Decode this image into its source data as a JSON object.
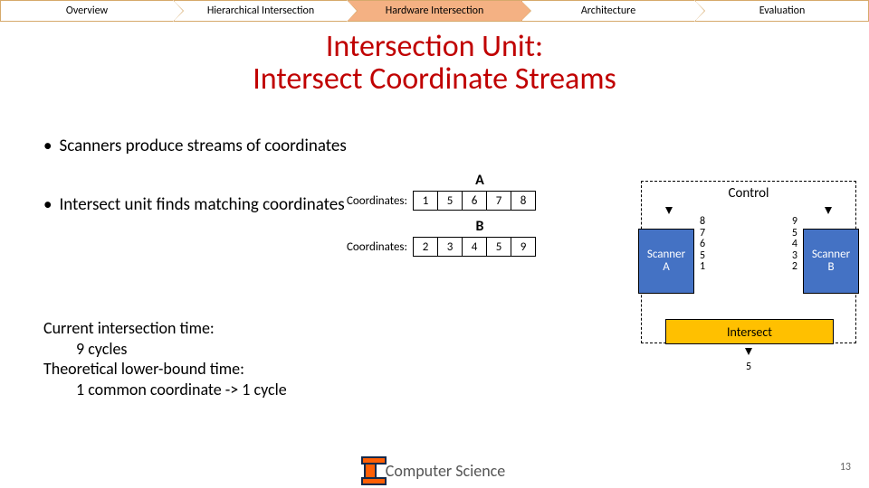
{
  "nav": {
    "items": [
      "Overview",
      "Hierarchical Intersection",
      "Hardware Intersection",
      "Architecture",
      "Evaluation"
    ],
    "active_index": 2,
    "active_bg": "#f4b183",
    "border_color": "#d6a96b"
  },
  "title": {
    "line1": "Intersection Unit:",
    "line2": "Intersect Coordinate Streams",
    "color": "#c00000",
    "fontsize": 34
  },
  "bullets": [
    "Scanners produce streams of coordinates",
    "Intersect unit finds matching coordinates"
  ],
  "streams": {
    "label_text": "Coordinates:",
    "A": {
      "name": "A",
      "cells": [
        "1",
        "5",
        "6",
        "7",
        "8"
      ]
    },
    "B": {
      "name": "B",
      "cells": [
        "2",
        "3",
        "4",
        "5",
        "9"
      ]
    }
  },
  "summary": {
    "l1": "Current intersection time:",
    "l2": "9 cycles",
    "l3": "Theoretical lower-bound time:",
    "l4": "1 common coordinate -> 1 cycle"
  },
  "control": {
    "title": "Control",
    "scannerA": {
      "l1": "Scanner",
      "l2": "A",
      "bg": "#4472c4"
    },
    "scannerB": {
      "l1": "Scanner",
      "l2": "B",
      "bg": "#4472c4"
    },
    "numsA": [
      "8",
      "7",
      "6",
      "5",
      "1"
    ],
    "numsB": [
      "9",
      "5",
      "4",
      "3",
      "2"
    ],
    "intersect": {
      "label": "Intersect",
      "bg": "#ffc000"
    },
    "output": "5"
  },
  "footer": {
    "text": "Computer Science",
    "page": "13"
  }
}
